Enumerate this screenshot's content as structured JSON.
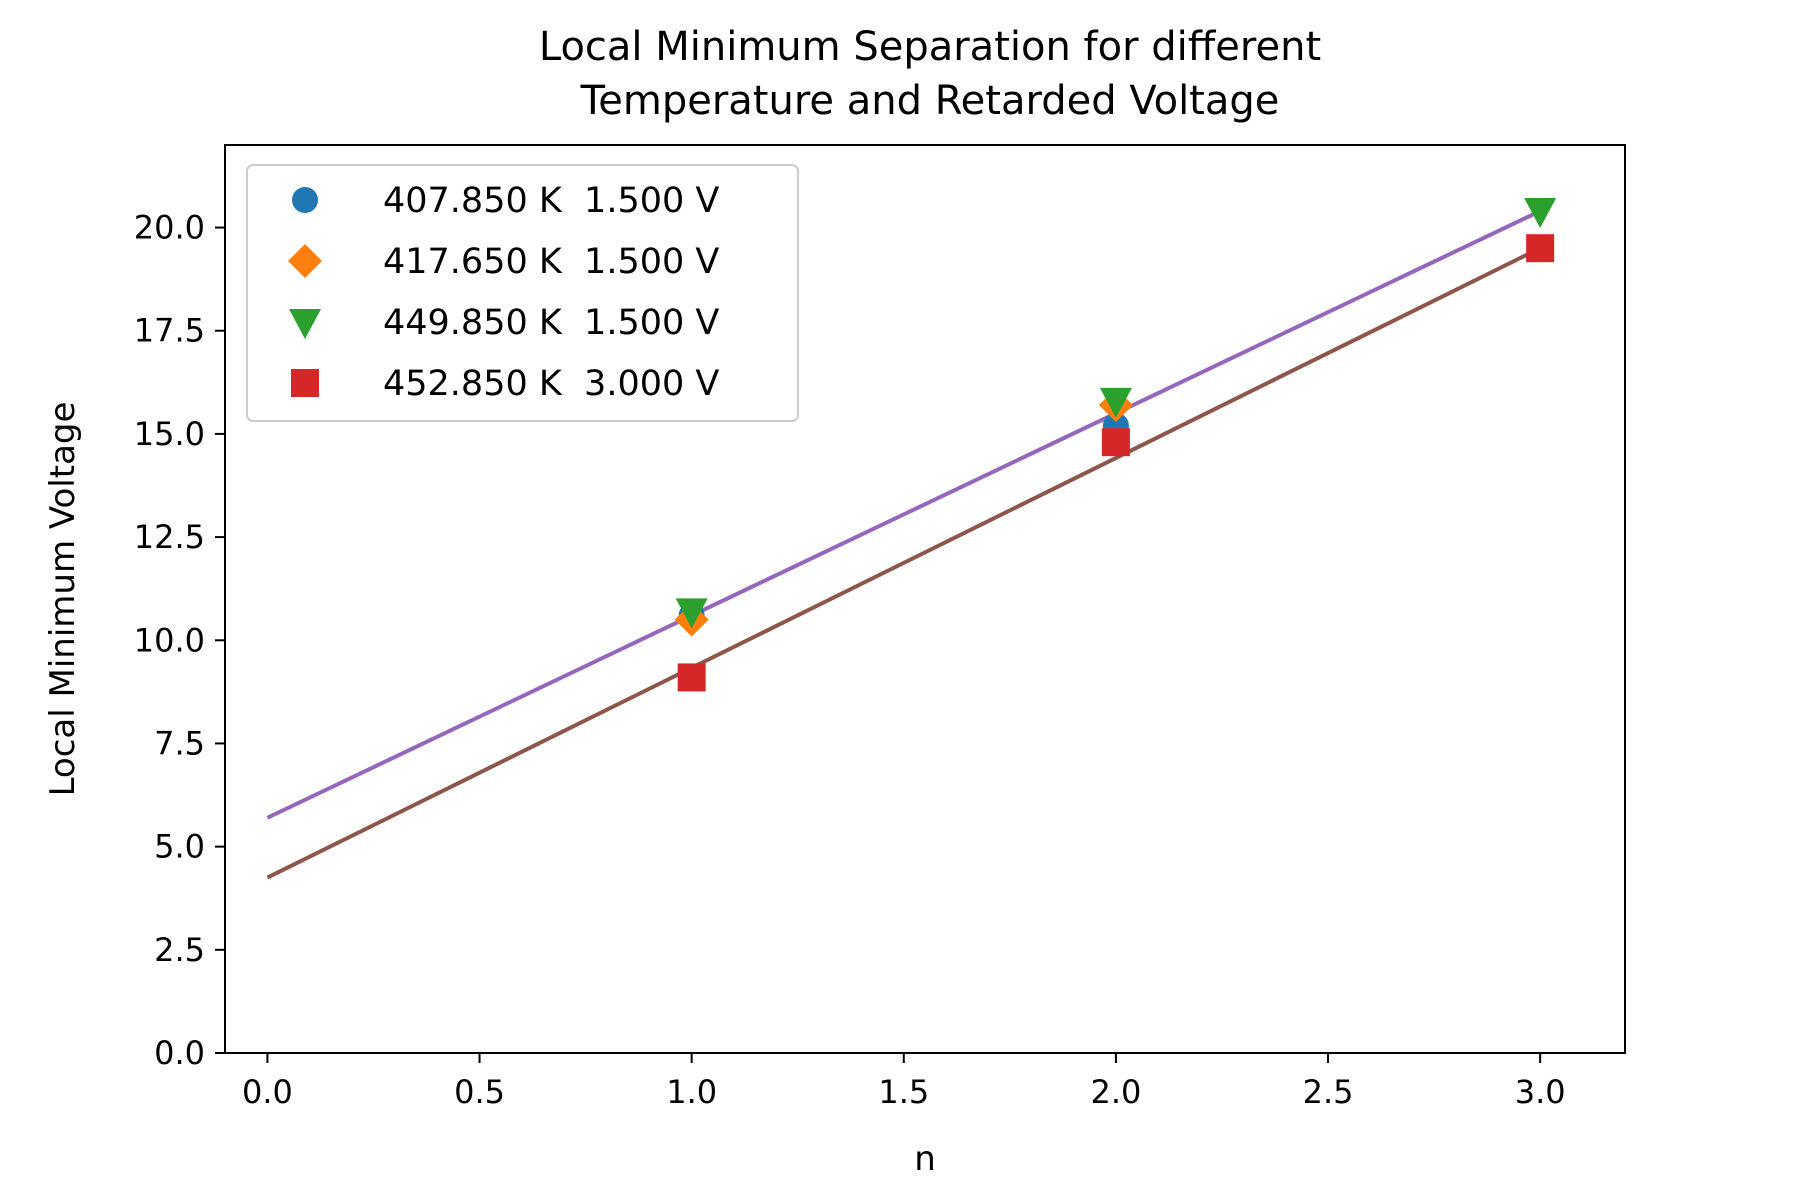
{
  "chart_data": {
    "type": "scatter",
    "title": [
      "Local Minimum Separation for different",
      "Temperature and Retarded Voltage"
    ],
    "xlabel": "n",
    "ylabel": "Local Minimum Voltage",
    "xlim": [
      -0.1,
      3.2
    ],
    "ylim": [
      0,
      22
    ],
    "x_ticks": [
      0.0,
      0.5,
      1.0,
      1.5,
      2.0,
      2.5,
      3.0
    ],
    "x_tick_labels": [
      "0.0",
      "0.5",
      "1.0",
      "1.5",
      "2.0",
      "2.5",
      "3.0"
    ],
    "y_ticks": [
      0.0,
      2.5,
      5.0,
      7.5,
      10.0,
      12.5,
      15.0,
      17.5,
      20.0
    ],
    "y_tick_labels": [
      "0.0",
      "2.5",
      "5.0",
      "7.5",
      "10.0",
      "12.5",
      "15.0",
      "17.5",
      "20.0"
    ],
    "grid": false,
    "legend_position": "upper-left",
    "series": [
      {
        "name": "407.850 K  1.500 V",
        "marker": "circle",
        "color": "#1f77b4",
        "x": [
          1,
          2
        ],
        "y": [
          10.6,
          15.2
        ]
      },
      {
        "name": "417.650 K  1.500 V",
        "marker": "diamond",
        "color": "#ff7f0e",
        "x": [
          1,
          2
        ],
        "y": [
          10.5,
          15.7
        ]
      },
      {
        "name": "449.850 K  1.500 V",
        "marker": "triangle-down",
        "color": "#2ca02c",
        "x": [
          1,
          2,
          3
        ],
        "y": [
          10.7,
          15.8,
          20.4
        ]
      },
      {
        "name": "452.850 K  3.000 V",
        "marker": "square",
        "color": "#d62728",
        "x": [
          1,
          2,
          3
        ],
        "y": [
          9.1,
          14.8,
          19.5
        ]
      }
    ],
    "fit_lines": [
      {
        "color": "#9467bd",
        "x": [
          0,
          3
        ],
        "y": [
          5.7,
          20.4
        ]
      },
      {
        "color": "#8c564b",
        "x": [
          0,
          3
        ],
        "y": [
          4.25,
          19.5
        ]
      }
    ]
  }
}
